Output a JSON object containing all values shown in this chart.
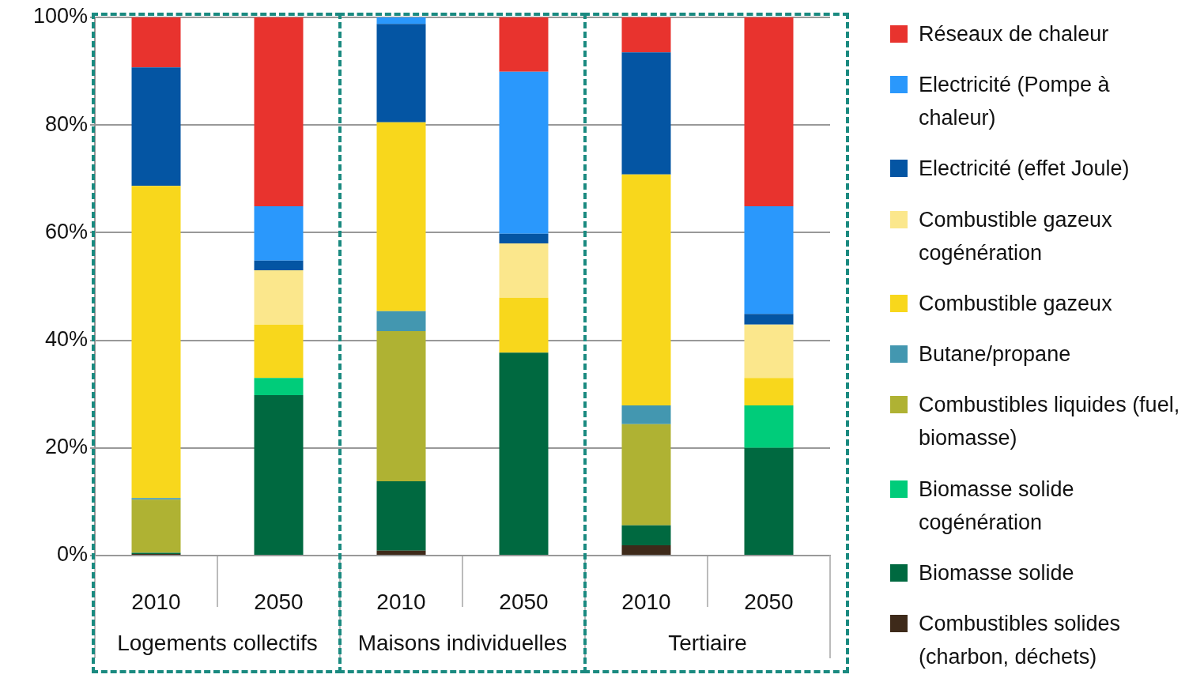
{
  "chart_data": {
    "type": "bar",
    "stacked": true,
    "categories": [
      "2010",
      "2050",
      "2010",
      "2050",
      "2010",
      "2050"
    ],
    "annotations": [
      "Logements collectifs",
      "Maisons individuelles",
      "Tertiaire"
    ],
    "ylim": [
      0,
      100
    ],
    "yticks": [
      {
        "value": 0,
        "label": "0%"
      },
      {
        "value": 20,
        "label": "20%"
      },
      {
        "value": 40,
        "label": "40%"
      },
      {
        "value": 60,
        "label": "60%"
      },
      {
        "value": 80,
        "label": "80%"
      },
      {
        "value": 100,
        "label": "100%"
      }
    ],
    "grid": "y",
    "legend": "right",
    "series": [
      {
        "name": "Combustibles solides (charbon, déchets)",
        "color": "#3e2a1a",
        "values": [
          0.3,
          0,
          0.9,
          0,
          1.9,
          0
        ]
      },
      {
        "name": "Biomasse solide",
        "color": "#006940",
        "values": [
          0.2,
          29.8,
          12.9,
          37.7,
          3.7,
          20.0
        ]
      },
      {
        "name": "Biomasse solide cogénération",
        "color": "#00cc7a",
        "values": [
          0,
          3.2,
          0,
          0,
          0,
          7.9
        ]
      },
      {
        "name": "Combustibles liquides (fuel, biomasse)",
        "color": "#afb233",
        "values": [
          9.9,
          0,
          27.9,
          0,
          18.8,
          0
        ]
      },
      {
        "name": "Butane/propane",
        "color": "#4397b0",
        "values": [
          0.3,
          0,
          3.7,
          0,
          3.5,
          0
        ]
      },
      {
        "name": "Combustible gazeux",
        "color": "#f8d71c",
        "values": [
          58.0,
          9.9,
          35.1,
          10.2,
          42.9,
          5.1
        ]
      },
      {
        "name": "Combustible gazeux cogénération",
        "color": "#fbe78c",
        "values": [
          0,
          10.1,
          0,
          10.1,
          0,
          9.9
        ]
      },
      {
        "name": "Electricité (effet Joule)",
        "color": "#0455a3",
        "values": [
          22.0,
          1.8,
          18.3,
          1.8,
          22.7,
          2.0
        ]
      },
      {
        "name": "Electricité (Pompe à chaleur)",
        "color": "#2a98fc",
        "values": [
          0,
          10.1,
          1.2,
          30.1,
          0,
          20.0
        ]
      },
      {
        "name": "Réseaux de chaleur",
        "color": "#e8332e",
        "values": [
          9.3,
          35.1,
          0,
          10.1,
          6.5,
          35.1
        ]
      }
    ]
  }
}
